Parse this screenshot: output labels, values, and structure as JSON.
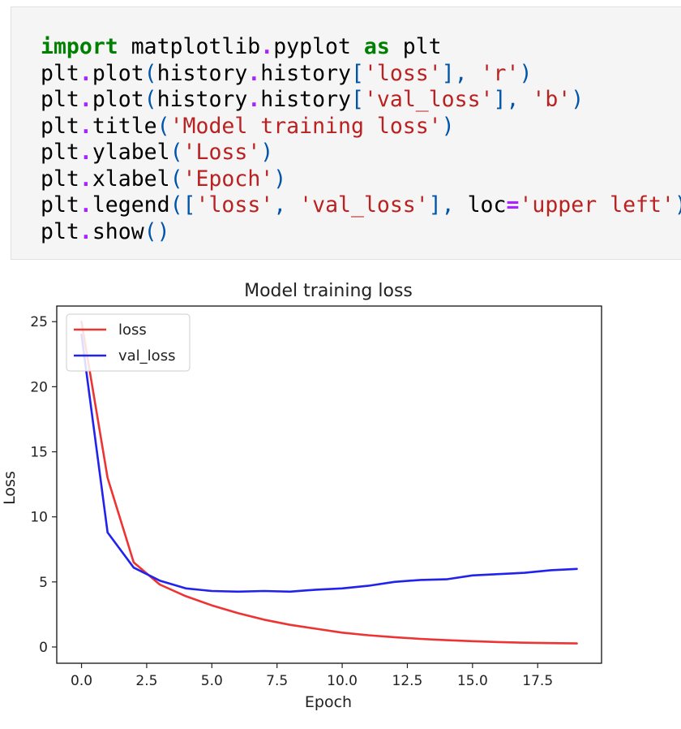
{
  "code_cell": {
    "lines": [
      {
        "tokens": [
          {
            "t": "import",
            "c": "kw"
          },
          {
            "t": " matplotlib",
            "c": "nm"
          },
          {
            "t": ".",
            "c": "op"
          },
          {
            "t": "pyplot ",
            "c": "nm"
          },
          {
            "t": "as",
            "c": "kw"
          },
          {
            "t": " plt",
            "c": "nm"
          }
        ]
      },
      {
        "tokens": [
          {
            "t": "plt",
            "c": "nm"
          },
          {
            "t": ".",
            "c": "op"
          },
          {
            "t": "plot",
            "c": "nm"
          },
          {
            "t": "(",
            "c": "pun"
          },
          {
            "t": "history",
            "c": "nm"
          },
          {
            "t": ".",
            "c": "op"
          },
          {
            "t": "history",
            "c": "nm"
          },
          {
            "t": "[",
            "c": "pun"
          },
          {
            "t": "'loss'",
            "c": "str"
          },
          {
            "t": "],",
            "c": "pun"
          },
          {
            "t": " ",
            "c": "nm"
          },
          {
            "t": "'r'",
            "c": "str"
          },
          {
            "t": ")",
            "c": "pun"
          }
        ]
      },
      {
        "tokens": [
          {
            "t": "plt",
            "c": "nm"
          },
          {
            "t": ".",
            "c": "op"
          },
          {
            "t": "plot",
            "c": "nm"
          },
          {
            "t": "(",
            "c": "pun"
          },
          {
            "t": "history",
            "c": "nm"
          },
          {
            "t": ".",
            "c": "op"
          },
          {
            "t": "history",
            "c": "nm"
          },
          {
            "t": "[",
            "c": "pun"
          },
          {
            "t": "'val_loss'",
            "c": "str"
          },
          {
            "t": "],",
            "c": "pun"
          },
          {
            "t": " ",
            "c": "nm"
          },
          {
            "t": "'b'",
            "c": "str"
          },
          {
            "t": ")",
            "c": "pun"
          }
        ]
      },
      {
        "tokens": [
          {
            "t": "plt",
            "c": "nm"
          },
          {
            "t": ".",
            "c": "op"
          },
          {
            "t": "title",
            "c": "nm"
          },
          {
            "t": "(",
            "c": "pun"
          },
          {
            "t": "'Model training loss'",
            "c": "str"
          },
          {
            "t": ")",
            "c": "pun"
          }
        ]
      },
      {
        "tokens": [
          {
            "t": "plt",
            "c": "nm"
          },
          {
            "t": ".",
            "c": "op"
          },
          {
            "t": "ylabel",
            "c": "nm"
          },
          {
            "t": "(",
            "c": "pun"
          },
          {
            "t": "'Loss'",
            "c": "str"
          },
          {
            "t": ")",
            "c": "pun"
          }
        ]
      },
      {
        "tokens": [
          {
            "t": "plt",
            "c": "nm"
          },
          {
            "t": ".",
            "c": "op"
          },
          {
            "t": "xlabel",
            "c": "nm"
          },
          {
            "t": "(",
            "c": "pun"
          },
          {
            "t": "'Epoch'",
            "c": "str"
          },
          {
            "t": ")",
            "c": "pun"
          }
        ]
      },
      {
        "tokens": [
          {
            "t": "plt",
            "c": "nm"
          },
          {
            "t": ".",
            "c": "op"
          },
          {
            "t": "legend",
            "c": "nm"
          },
          {
            "t": "([",
            "c": "pun"
          },
          {
            "t": "'loss'",
            "c": "str"
          },
          {
            "t": ",",
            "c": "pun"
          },
          {
            "t": " ",
            "c": "nm"
          },
          {
            "t": "'val_loss'",
            "c": "str"
          },
          {
            "t": "],",
            "c": "pun"
          },
          {
            "t": " loc",
            "c": "nm"
          },
          {
            "t": "=",
            "c": "op"
          },
          {
            "t": "'upper left'",
            "c": "str"
          },
          {
            "t": ")",
            "c": "pun"
          }
        ]
      },
      {
        "tokens": [
          {
            "t": "plt",
            "c": "nm"
          },
          {
            "t": ".",
            "c": "op"
          },
          {
            "t": "show",
            "c": "nm"
          },
          {
            "t": "()",
            "c": "pun"
          }
        ]
      }
    ]
  },
  "chart_data": {
    "type": "line",
    "title": "Model training loss",
    "xlabel": "Epoch",
    "ylabel": "Loss",
    "xlim": [
      -0.95,
      19.95
    ],
    "ylim": [
      -1.25,
      26.2
    ],
    "xticks": [
      0.0,
      2.5,
      5.0,
      7.5,
      10.0,
      12.5,
      15.0,
      17.5
    ],
    "xtick_labels": [
      "0.0",
      "2.5",
      "5.0",
      "7.5",
      "10.0",
      "12.5",
      "15.0",
      "17.5"
    ],
    "yticks": [
      0,
      5,
      10,
      15,
      20,
      25
    ],
    "ytick_labels": [
      "0",
      "5",
      "10",
      "15",
      "20",
      "25"
    ],
    "grid": false,
    "legend": "upper-left",
    "x": [
      0,
      1,
      2,
      3,
      4,
      5,
      6,
      7,
      8,
      9,
      10,
      11,
      12,
      13,
      14,
      15,
      16,
      17,
      18,
      19
    ],
    "series": [
      {
        "name": "loss",
        "color": "#ee3333",
        "values": [
          25.0,
          13.0,
          6.5,
          4.8,
          3.9,
          3.2,
          2.6,
          2.1,
          1.7,
          1.4,
          1.1,
          0.9,
          0.75,
          0.62,
          0.52,
          0.45,
          0.38,
          0.33,
          0.3,
          0.27
        ]
      },
      {
        "name": "val_loss",
        "color": "#2222ee",
        "values": [
          24.0,
          8.8,
          6.1,
          5.1,
          4.5,
          4.3,
          4.25,
          4.3,
          4.25,
          4.4,
          4.5,
          4.7,
          5.0,
          5.15,
          5.2,
          5.5,
          5.6,
          5.7,
          5.9,
          6.0
        ]
      }
    ]
  }
}
